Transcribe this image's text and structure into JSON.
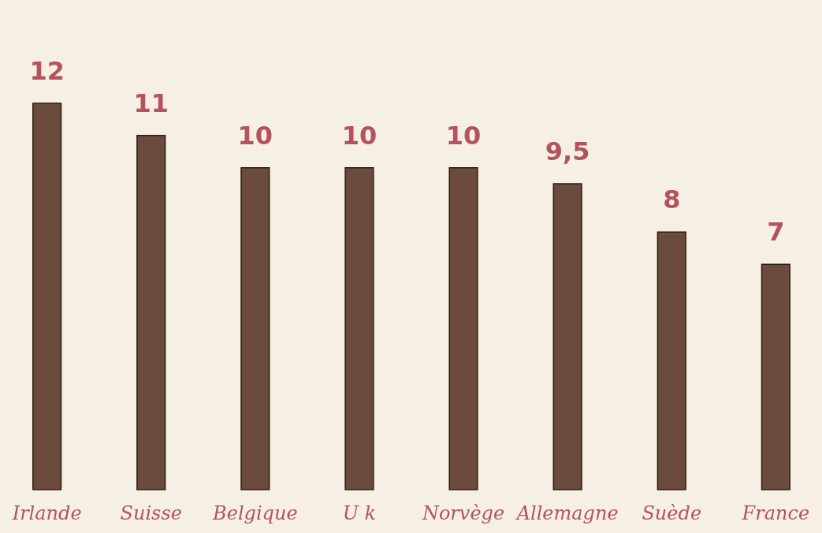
{
  "chart_data": {
    "type": "bar",
    "categories": [
      "Irlande",
      "Suisse",
      "Belgique",
      "U k",
      "Norvège",
      "Allemagne",
      "Suède",
      "France"
    ],
    "values": [
      12,
      11,
      10,
      10,
      10,
      9.5,
      8,
      7
    ],
    "value_labels": [
      "12",
      "11",
      "10",
      "10",
      "10",
      "9,5",
      "8",
      "7"
    ],
    "color": "#6b4b3e",
    "tick_labels": "x"
  }
}
